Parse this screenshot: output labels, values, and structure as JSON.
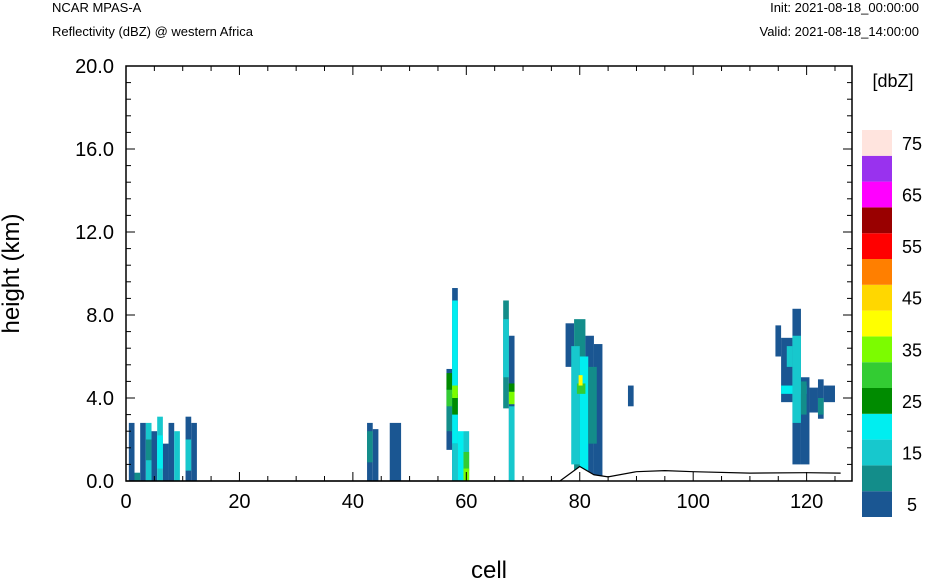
{
  "header": {
    "model": "NCAR MPAS-A",
    "field": "Reflectivity (dBZ) @ western Africa",
    "init": "Init: 2021-08-18_00:00:00",
    "valid": "Valid: 2021-08-18_14:00:00"
  },
  "chart_data": {
    "type": "heatmap",
    "xlabel": "cell",
    "ylabel": "height (km)",
    "xlim": [
      0,
      128
    ],
    "ylim": [
      0,
      20
    ],
    "x_ticks": [
      "0",
      "20",
      "40",
      "60",
      "80",
      "100",
      "120"
    ],
    "x_tick_values": [
      0,
      20,
      40,
      60,
      80,
      100,
      120
    ],
    "y_ticks": [
      "0.0",
      "4.0",
      "8.0",
      "12.0",
      "16.0",
      "20.0"
    ],
    "y_tick_values": [
      0,
      4,
      8,
      12,
      16,
      20
    ],
    "colorbar": {
      "title": "[dbZ]",
      "levels": [
        5,
        10,
        15,
        20,
        25,
        30,
        35,
        40,
        45,
        50,
        55,
        60,
        65,
        70,
        75
      ],
      "labels": [
        "5",
        "15",
        "25",
        "35",
        "45",
        "55",
        "65",
        "75"
      ],
      "colors": [
        "#1a5692",
        "#138d8a",
        "#17c8cd",
        "#00eef0",
        "#008b00",
        "#33cc33",
        "#7cfc00",
        "#ffff00",
        "#ffd700",
        "#ff7f00",
        "#ff0000",
        "#990000",
        "#ff00ff",
        "#9932ee",
        "#ffe4de"
      ]
    },
    "reflectivity_columns": [
      {
        "x0": 0.5,
        "x1": 1.5,
        "y0": 0,
        "y1": 2.8,
        "dbz": 5
      },
      {
        "x0": 2.5,
        "x1": 3.5,
        "y0": 0,
        "y1": 2.8,
        "dbz": 5
      },
      {
        "x0": 3.5,
        "x1": 4.5,
        "y0": 0,
        "y1": 2.8,
        "dbz": 15
      },
      {
        "x0": 4.5,
        "x1": 5.5,
        "y0": 0,
        "y1": 2.4,
        "dbz": 5
      },
      {
        "x0": 5.5,
        "x1": 6.5,
        "y0": 0,
        "y1": 3.1,
        "dbz": 15
      },
      {
        "x0": 6.5,
        "x1": 7.5,
        "y0": 0,
        "y1": 1.8,
        "dbz": 5
      },
      {
        "x0": 7.5,
        "x1": 8.5,
        "y0": 0,
        "y1": 2.8,
        "dbz": 5
      },
      {
        "x0": 8.5,
        "x1": 9.5,
        "y0": 0,
        "y1": 2.4,
        "dbz": 15
      },
      {
        "x0": 10.5,
        "x1": 11.5,
        "y0": 0,
        "y1": 3.1,
        "dbz": 5
      },
      {
        "x0": 11.5,
        "x1": 12.5,
        "y0": 0,
        "y1": 2.8,
        "dbz": 5
      },
      {
        "x0": 42.5,
        "x1": 43.5,
        "y0": 0,
        "y1": 2.8,
        "dbz": 5
      },
      {
        "x0": 43.5,
        "x1": 44.5,
        "y0": 0,
        "y1": 2.5,
        "dbz": 5
      },
      {
        "x0": 46.5,
        "x1": 48.5,
        "y0": 0,
        "y1": 2.8,
        "dbz": 5
      },
      {
        "x0": 56.5,
        "x1": 57.5,
        "y0": 1.5,
        "y1": 5.4,
        "dbz": 5
      },
      {
        "x0": 57.5,
        "x1": 58.5,
        "y0": 0,
        "y1": 9.3,
        "dbz": 5
      },
      {
        "x0": 58.5,
        "x1": 59.5,
        "y0": 0,
        "y1": 2.4,
        "dbz": 20
      },
      {
        "x0": 59.5,
        "x1": 60.5,
        "y0": 0,
        "y1": 2.4,
        "dbz": 15
      },
      {
        "x0": 66.5,
        "x1": 67.5,
        "y0": 3.5,
        "y1": 8.7,
        "dbz": 10
      },
      {
        "x0": 67.5,
        "x1": 68.5,
        "y0": 0,
        "y1": 7.0,
        "dbz": 5
      },
      {
        "x0": 77.5,
        "x1": 79.0,
        "y0": 5.5,
        "y1": 7.6,
        "dbz": 5
      },
      {
        "x0": 79.0,
        "x1": 81.0,
        "y0": 0,
        "y1": 7.8,
        "dbz": 10
      },
      {
        "x0": 81.0,
        "x1": 82.5,
        "y0": 0,
        "y1": 7.0,
        "dbz": 5
      },
      {
        "x0": 82.5,
        "x1": 84.0,
        "y0": 0,
        "y1": 6.6,
        "dbz": 5
      },
      {
        "x0": 88.5,
        "x1": 89.5,
        "y0": 3.6,
        "y1": 4.6,
        "dbz": 5
      },
      {
        "x0": 114.5,
        "x1": 115.5,
        "y0": 6.0,
        "y1": 7.5,
        "dbz": 5
      },
      {
        "x0": 115.5,
        "x1": 117.5,
        "y0": 3.8,
        "y1": 6.9,
        "dbz": 5
      },
      {
        "x0": 117.5,
        "x1": 119.0,
        "y0": 0.8,
        "y1": 8.3,
        "dbz": 5
      },
      {
        "x0": 119.0,
        "x1": 120.5,
        "y0": 0.8,
        "y1": 5.0,
        "dbz": 5
      },
      {
        "x0": 120.5,
        "x1": 122.0,
        "y0": 3.3,
        "y1": 4.5,
        "dbz": 5
      },
      {
        "x0": 122.0,
        "x1": 123.0,
        "y0": 3.0,
        "y1": 4.9,
        "dbz": 5
      },
      {
        "x0": 123.0,
        "x1": 125.0,
        "y0": 3.8,
        "y1": 4.6,
        "dbz": 5
      }
    ],
    "reflectivity_patches": [
      {
        "x0": 1.5,
        "x1": 2.5,
        "y0": 0,
        "y1": 0.4,
        "dbz": 10
      },
      {
        "x0": 3.5,
        "x1": 4.5,
        "y0": 1.0,
        "y1": 2.0,
        "dbz": 10
      },
      {
        "x0": 5.5,
        "x1": 6.5,
        "y0": 0.6,
        "y1": 2.2,
        "dbz": 20
      },
      {
        "x0": 10.5,
        "x1": 11.5,
        "y0": 0.5,
        "y1": 2.0,
        "dbz": 15
      },
      {
        "x0": 42.5,
        "x1": 43.5,
        "y0": 0.9,
        "y1": 2.4,
        "dbz": 10
      },
      {
        "x0": 56.5,
        "x1": 57.5,
        "y0": 2.4,
        "y1": 4.5,
        "dbz": 10
      },
      {
        "x0": 56.5,
        "x1": 57.5,
        "y0": 3.6,
        "y1": 4.4,
        "dbz": 30
      },
      {
        "x0": 56.5,
        "x1": 57.5,
        "y0": 4.4,
        "y1": 5.2,
        "dbz": 25
      },
      {
        "x0": 57.5,
        "x1": 58.5,
        "y0": 1.8,
        "y1": 8.7,
        "dbz": 20
      },
      {
        "x0": 57.5,
        "x1": 58.5,
        "y0": 3.2,
        "y1": 4.2,
        "dbz": 25
      },
      {
        "x0": 57.5,
        "x1": 58.5,
        "y0": 4.0,
        "y1": 4.6,
        "dbz": 35
      },
      {
        "x0": 57.5,
        "x1": 58.5,
        "y0": 0,
        "y1": 1.8,
        "dbz": 15
      },
      {
        "x0": 59.5,
        "x1": 60.5,
        "y0": 0.5,
        "y1": 1.4,
        "dbz": 30
      },
      {
        "x0": 59.5,
        "x1": 60.5,
        "y0": 0,
        "y1": 0.6,
        "dbz": 35
      },
      {
        "x0": 66.5,
        "x1": 67.5,
        "y0": 5.0,
        "y1": 7.8,
        "dbz": 15
      },
      {
        "x0": 67.5,
        "x1": 68.5,
        "y0": 0,
        "y1": 3.6,
        "dbz": 15
      },
      {
        "x0": 67.5,
        "x1": 68.5,
        "y0": 4.3,
        "y1": 4.7,
        "dbz": 25
      },
      {
        "x0": 67.5,
        "x1": 68.5,
        "y0": 3.7,
        "y1": 4.3,
        "dbz": 35
      },
      {
        "x0": 78.5,
        "x1": 80.0,
        "y0": 0.8,
        "y1": 6.5,
        "dbz": 15
      },
      {
        "x0": 80.0,
        "x1": 81.5,
        "y0": 0.5,
        "y1": 6.0,
        "dbz": 20
      },
      {
        "x0": 79.5,
        "x1": 81.0,
        "y0": 4.2,
        "y1": 4.7,
        "dbz": 30
      },
      {
        "x0": 79.8,
        "x1": 80.5,
        "y0": 4.6,
        "y1": 5.1,
        "dbz": 40
      },
      {
        "x0": 81.5,
        "x1": 83.0,
        "y0": 1.8,
        "y1": 5.5,
        "dbz": 10
      },
      {
        "x0": 116.5,
        "x1": 117.5,
        "y0": 5.5,
        "y1": 6.5,
        "dbz": 15
      },
      {
        "x0": 115.5,
        "x1": 120.0,
        "y0": 4.2,
        "y1": 4.6,
        "dbz": 20
      },
      {
        "x0": 117.5,
        "x1": 119.0,
        "y0": 2.8,
        "y1": 7.0,
        "dbz": 15
      },
      {
        "x0": 119.0,
        "x1": 120.0,
        "y0": 3.2,
        "y1": 4.8,
        "dbz": 10
      },
      {
        "x0": 122.0,
        "x1": 123.0,
        "y0": 3.2,
        "y1": 4.0,
        "dbz": 10
      }
    ],
    "terrain": [
      {
        "x": 0,
        "y": 0
      },
      {
        "x": 76.5,
        "y": 0
      },
      {
        "x": 80,
        "y": 0.7
      },
      {
        "x": 82.5,
        "y": 0.3
      },
      {
        "x": 85,
        "y": 0.2
      },
      {
        "x": 90,
        "y": 0.45
      },
      {
        "x": 95,
        "y": 0.5
      },
      {
        "x": 100,
        "y": 0.45
      },
      {
        "x": 110,
        "y": 0.38
      },
      {
        "x": 120,
        "y": 0.4
      },
      {
        "x": 126,
        "y": 0.38
      }
    ]
  }
}
